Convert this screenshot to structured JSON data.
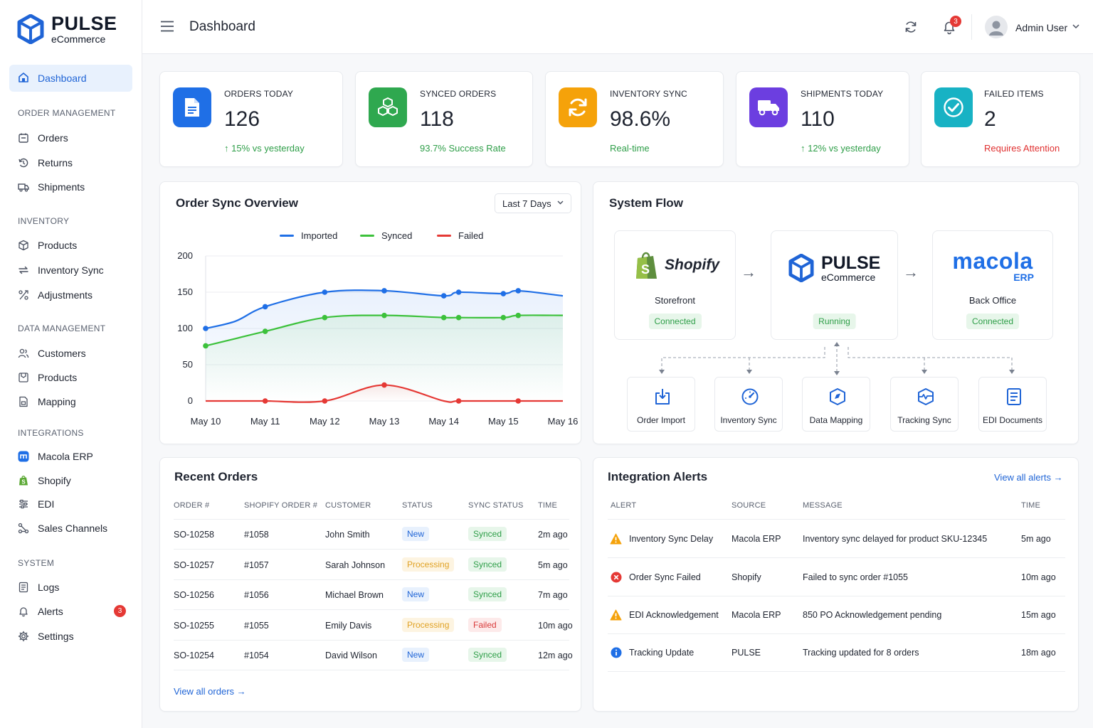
{
  "brand": {
    "title": "PULSE",
    "subtitle": "eCommerce"
  },
  "sidebar": {
    "active": {
      "label": "Dashboard",
      "icon": "dashboard-icon"
    },
    "sections": [
      {
        "title": "ORDER MANAGEMENT",
        "items": [
          {
            "label": "Orders",
            "icon": "orders-icon"
          },
          {
            "label": "Returns",
            "icon": "returns-icon"
          },
          {
            "label": "Shipments",
            "icon": "truck-icon"
          }
        ]
      },
      {
        "title": "INVENTORY",
        "items": [
          {
            "label": "Products",
            "icon": "box-icon"
          },
          {
            "label": "Inventory Sync",
            "icon": "sync-icon"
          },
          {
            "label": "Adjustments",
            "icon": "adjustments-icon"
          }
        ]
      },
      {
        "title": "DATA MANAGEMENT",
        "items": [
          {
            "label": "Customers",
            "icon": "users-icon"
          },
          {
            "label": "Products",
            "icon": "tag-icon"
          },
          {
            "label": "Mapping",
            "icon": "mapping-icon"
          }
        ]
      },
      {
        "title": "INTEGRATIONS",
        "items": [
          {
            "label": "Macola ERP",
            "icon": "macola-icon"
          },
          {
            "label": "Shopify",
            "icon": "shopify-icon"
          },
          {
            "label": "EDI",
            "icon": "edi-icon"
          },
          {
            "label": "Sales Channels",
            "icon": "channels-icon"
          }
        ]
      },
      {
        "title": "SYSTEM",
        "items": [
          {
            "label": "Logs",
            "icon": "logs-icon"
          },
          {
            "label": "Alerts",
            "icon": "bell-icon",
            "badge": "3"
          },
          {
            "label": "Settings",
            "icon": "gear-icon"
          }
        ]
      }
    ]
  },
  "header": {
    "title": "Dashboard",
    "notifications": "3",
    "user": "Admin User"
  },
  "kpis": [
    {
      "label": "ORDERS TODAY",
      "value": "126",
      "sub": "15% vs yesterday",
      "sub_arrow": "↑",
      "sub_color": "#2e9e48",
      "icon": "document-icon",
      "color": "#1f6fe6"
    },
    {
      "label": "SYNCED ORDERS",
      "value": "118",
      "sub": "93.7% Success Rate",
      "sub_arrow": "",
      "sub_color": "#2e9e48",
      "icon": "cubes-icon",
      "color": "#2fa84f"
    },
    {
      "label": "INVENTORY SYNC",
      "value": "98.6%",
      "sub": "Real-time",
      "sub_arrow": "",
      "sub_color": "#2e9e48",
      "icon": "sync-icon",
      "color": "#f5a20a"
    },
    {
      "label": "SHIPMENTS TODAY",
      "value": "110",
      "sub": "12% vs yesterday",
      "sub_arrow": "↑",
      "sub_color": "#2e9e48",
      "icon": "truck-icon",
      "color": "#6c3ee0"
    },
    {
      "label": "FAILED ITEMS",
      "value": "2",
      "sub": "Requires Attention",
      "sub_arrow": "",
      "sub_color": "#e03131",
      "icon": "check-icon",
      "color": "#18b2c4"
    }
  ],
  "sync_overview": {
    "title": "Order Sync Overview",
    "range": "Last 7 Days"
  },
  "chart_data": {
    "type": "line",
    "title": "Order Sync Overview",
    "categories": [
      "May 10",
      "May 11",
      "May 12",
      "May 13",
      "May 14",
      "May 15",
      "May 16"
    ],
    "x": [
      0,
      0.5,
      1,
      2,
      3,
      4,
      4.25,
      5,
      5.25,
      6
    ],
    "series": [
      {
        "name": "Imported",
        "color": "#1f6fe6",
        "values": [
          100,
          110,
          130,
          150,
          152,
          145,
          150,
          148,
          152,
          145
        ],
        "markers": [
          0,
          2,
          3,
          4,
          5,
          6,
          7,
          8
        ]
      },
      {
        "name": "Synced",
        "color": "#3cc13b",
        "values": [
          76,
          86,
          96,
          115,
          118,
          115,
          115,
          115,
          118,
          118
        ],
        "markers": [
          0,
          2,
          3,
          4,
          5,
          6,
          7,
          8
        ]
      },
      {
        "name": "Failed",
        "color": "#e53935",
        "values": [
          0,
          0,
          0,
          0,
          22,
          0,
          0,
          0,
          0,
          0
        ],
        "markers": [
          2,
          3,
          4,
          6,
          8
        ]
      }
    ],
    "yticks": [
      0,
      50,
      100,
      150,
      200
    ],
    "ylim": [
      0,
      200
    ],
    "grid": true,
    "legend": "top-center"
  },
  "system_flow": {
    "title": "System Flow",
    "nodes": [
      {
        "name": "Shopify",
        "label": "Storefront",
        "status": "Connected"
      },
      {
        "name": "PULSE",
        "sub": "eCommerce",
        "label": "",
        "status": "Running"
      },
      {
        "name": "macola",
        "sub": "ERP",
        "label": "Back Office",
        "status": "Connected"
      }
    ],
    "arrow": "→",
    "modules": [
      {
        "label": "Order Import",
        "icon": "import-icon"
      },
      {
        "label": "Inventory Sync",
        "icon": "gauge-icon"
      },
      {
        "label": "Data Mapping",
        "icon": "mapping-shield-icon"
      },
      {
        "label": "Tracking Sync",
        "icon": "tracking-icon"
      },
      {
        "label": "EDI Documents",
        "icon": "edi-document-icon"
      }
    ]
  },
  "recent_orders": {
    "title": "Recent Orders",
    "columns": [
      "ORDER #",
      "SHOPIFY ORDER #",
      "CUSTOMER",
      "STATUS",
      "SYNC STATUS",
      "TIME"
    ],
    "rows": [
      {
        "order": "SO-10258",
        "shopify": "#1058",
        "customer": "John Smith",
        "status": "New",
        "sync": "Synced",
        "time": "2m ago"
      },
      {
        "order": "SO-10257",
        "shopify": "#1057",
        "customer": "Sarah Johnson",
        "status": "Processing",
        "sync": "Synced",
        "time": "5m ago"
      },
      {
        "order": "SO-10256",
        "shopify": "#1056",
        "customer": "Michael Brown",
        "status": "New",
        "sync": "Synced",
        "time": "7m ago"
      },
      {
        "order": "SO-10255",
        "shopify": "#1055",
        "customer": "Emily Davis",
        "status": "Processing",
        "sync": "Failed",
        "time": "10m ago"
      },
      {
        "order": "SO-10254",
        "shopify": "#1054",
        "customer": "David Wilson",
        "status": "New",
        "sync": "Synced",
        "time": "12m ago"
      }
    ],
    "view_all": "View all orders →"
  },
  "integration_alerts": {
    "title": "Integration Alerts",
    "view_all": "View all alerts →",
    "columns": [
      "ALERT",
      "SOURCE",
      "MESSAGE",
      "TIME"
    ],
    "rows": [
      {
        "type": "warning",
        "alert": "Inventory Sync Delay",
        "source": "Macola ERP",
        "message": "Inventory sync delayed for product SKU-12345",
        "time": "5m ago"
      },
      {
        "type": "error",
        "alert": "Order Sync Failed",
        "source": "Shopify",
        "message": "Failed to sync order #1055",
        "time": "10m ago"
      },
      {
        "type": "warning",
        "alert": "EDI Acknowledgement",
        "source": "Macola ERP",
        "message": "850 PO Acknowledgement pending",
        "time": "15m ago"
      },
      {
        "type": "info",
        "alert": "Tracking Update",
        "source": "PULSE",
        "message": "Tracking updated for 8 orders",
        "time": "18m ago"
      }
    ]
  }
}
